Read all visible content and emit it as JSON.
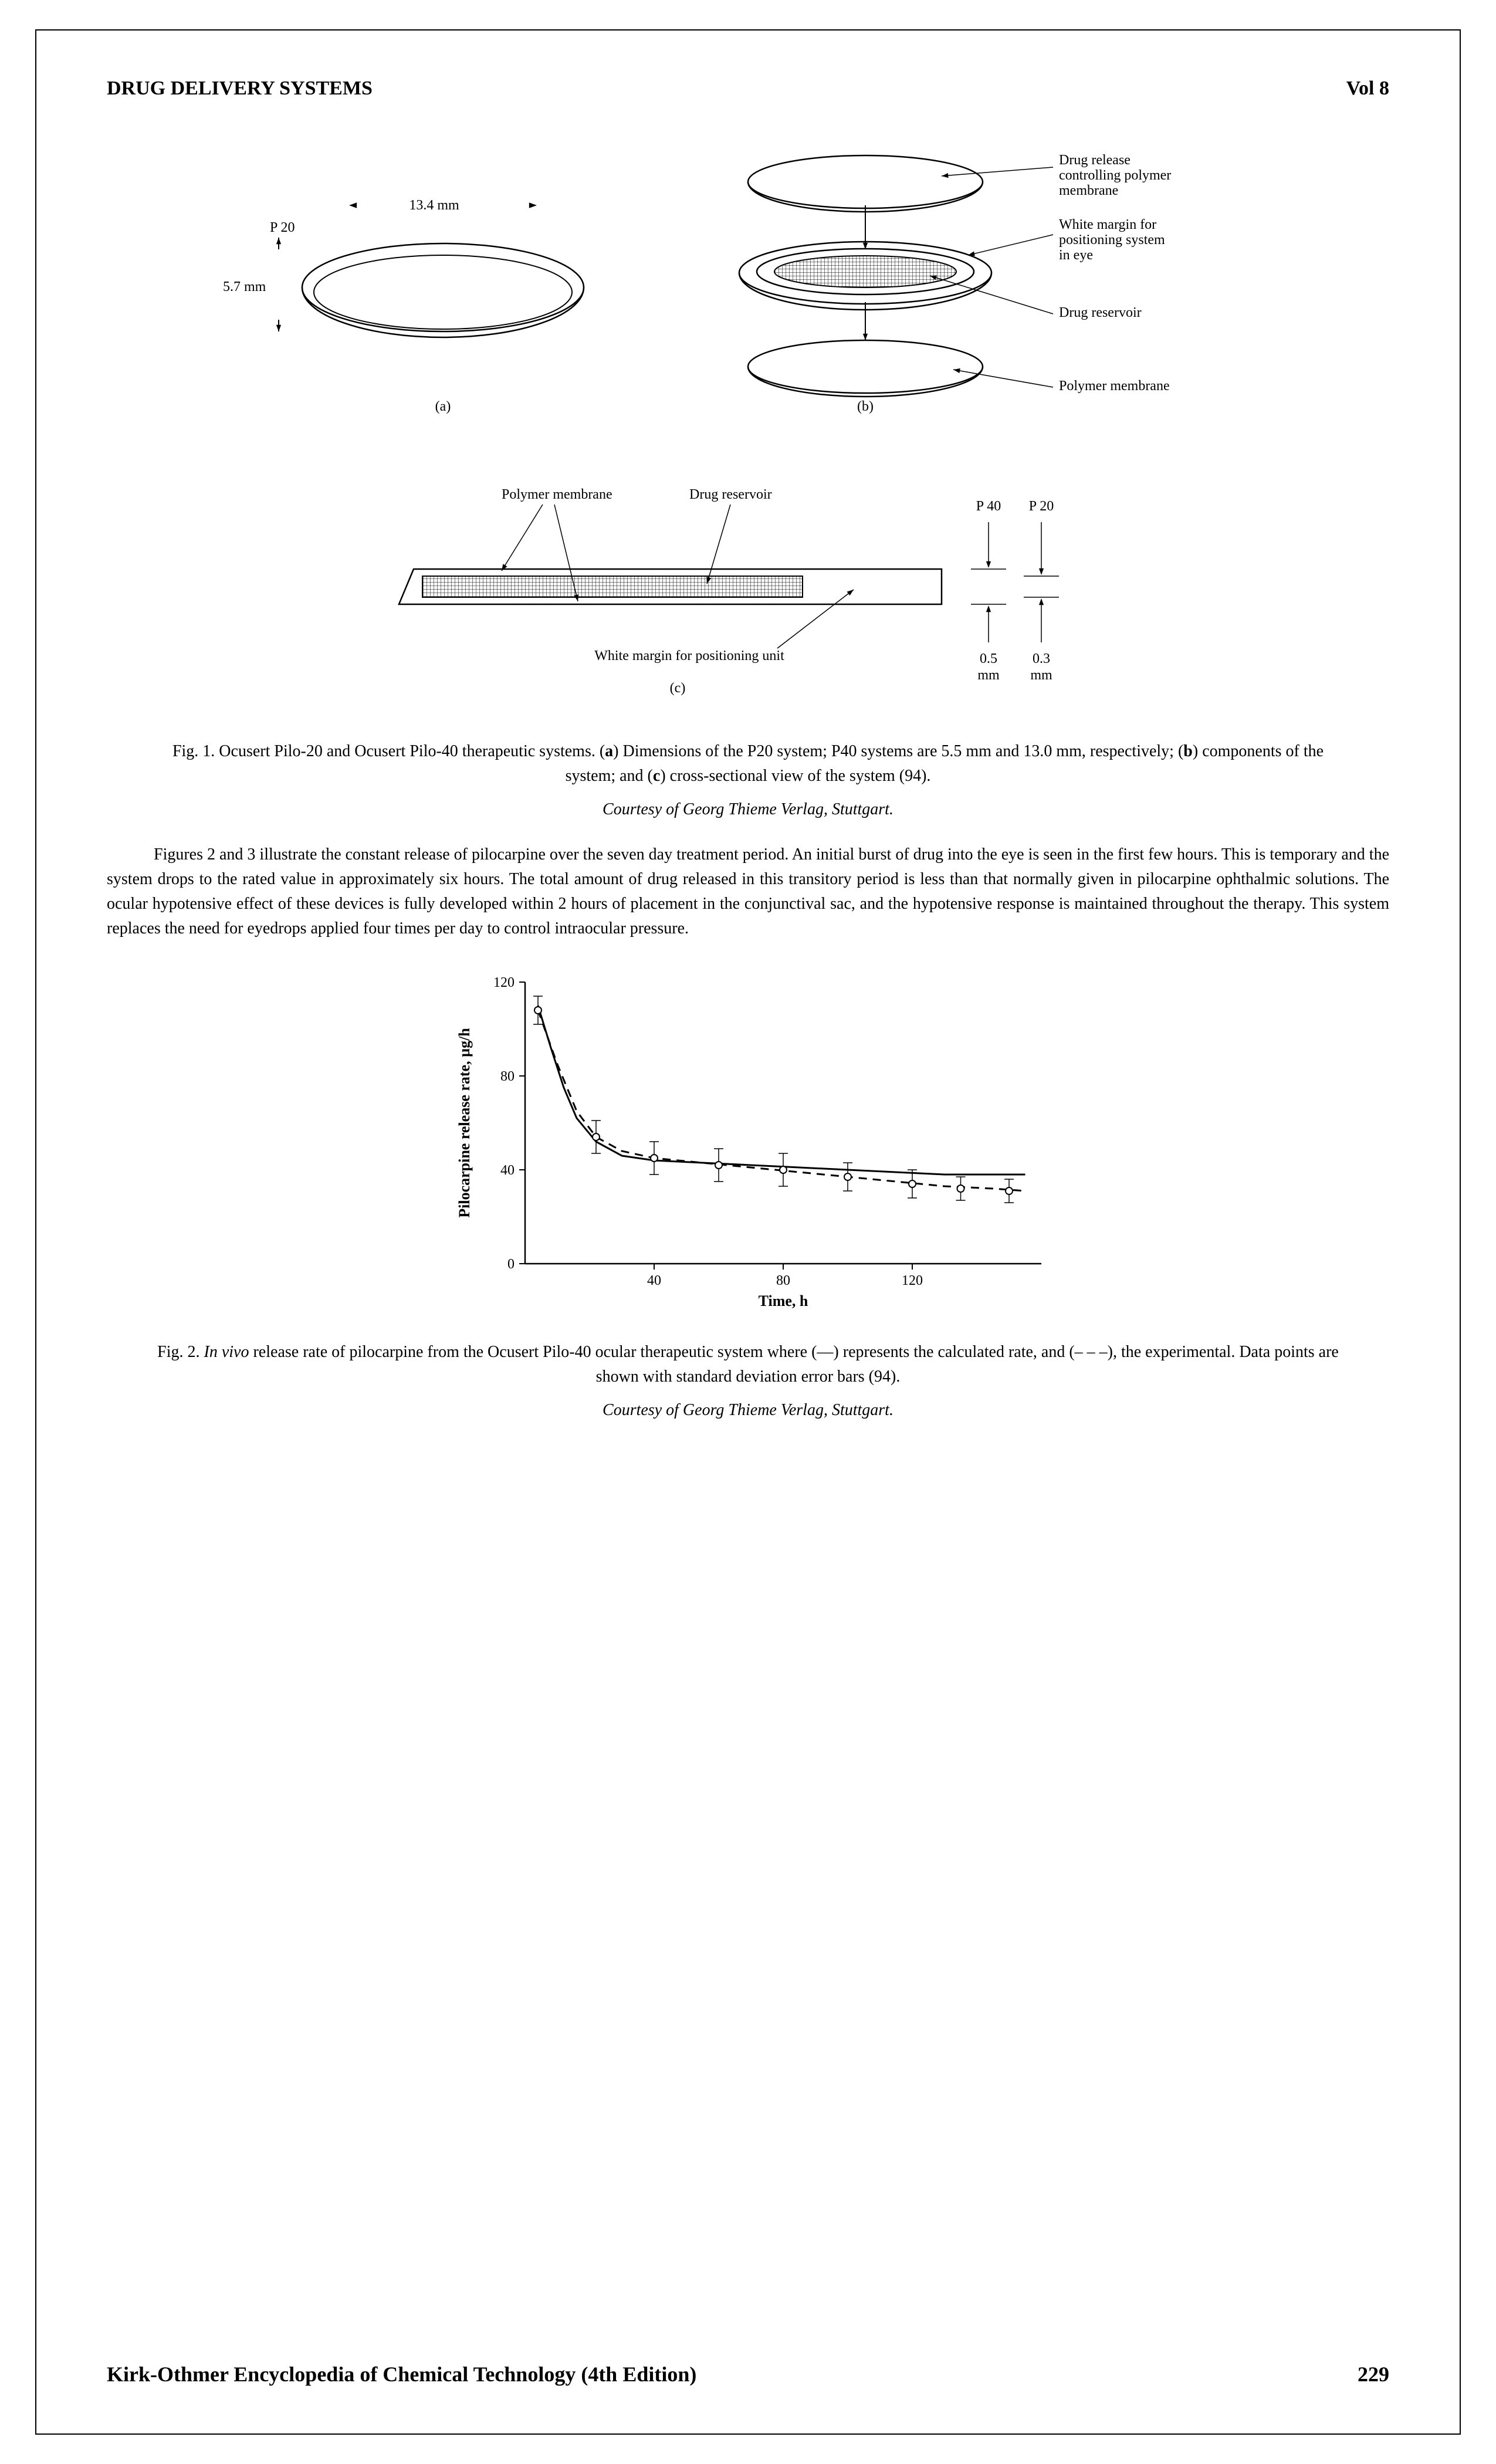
{
  "header": {
    "title": "DRUG DELIVERY SYSTEMS",
    "volume": "Vol 8"
  },
  "figure1": {
    "type": "diagram",
    "width_label": "13.4 mm",
    "height_label": "5.7 mm",
    "p20_label": "P 20",
    "panel_a_label": "(a)",
    "panel_b_label": "(b)",
    "panel_c_label": "(c)",
    "callouts": {
      "drug_release_membrane": "Drug release controlling polymer membrane",
      "white_margin_eye": "White margin for positioning system in eye",
      "drug_reservoir": "Drug reservoir",
      "polymer_membrane": "Polymer membrane",
      "polymer_membrane_c": "Polymer membrane",
      "drug_reservoir_c": "Drug reservoir",
      "white_margin_unit": "White margin for positioning unit",
      "p40": "P 40",
      "p20_c": "P 20",
      "dim_05": "0.5 mm",
      "dim_03": "0.3 mm"
    },
    "caption_prefix": "Fig. 1. Ocusert Pilo-20 and Ocusert Pilo-40 therapeutic systems. (",
    "caption_a": "a",
    "caption_mid1": ") Dimensions of the P20 system; P40 systems are 5.5 mm and 13.0 mm, respectively; (",
    "caption_b": "b",
    "caption_mid2": ") components of the system; and (",
    "caption_c": "c",
    "caption_end": ") cross-sectional view of the system (94).",
    "courtesy": "Courtesy of Georg Thieme Verlag, Stuttgart.",
    "stroke_color": "#000000",
    "fill_white": "#ffffff",
    "hatch_spacing": 6,
    "label_fontsize": 24
  },
  "body_paragraph": "Figures 2 and 3 illustrate the constant release of pilocarpine over the seven day treatment period. An initial burst of drug into the eye is seen in the first few hours. This is temporary and the system drops to the rated value in approximately six hours. The total amount of drug released in this transitory period is less than that normally given in pilocarpine ophthalmic solutions. The ocular hypotensive effect of these devices is fully developed within 2 hours of placement in the conjunctival sac, and the hypotensive response is maintained throughout the therapy. This system replaces the need for eyedrops applied four times per day to control intraocular pressure.",
  "figure2": {
    "type": "line",
    "xlabel": "Time, h",
    "ylabel": "Pilocarpine release rate, µg/h",
    "label_fontsize": 24,
    "xlim": [
      0,
      160
    ],
    "ylim": [
      0,
      120
    ],
    "xticks": [
      40,
      80,
      120
    ],
    "yticks": [
      0,
      40,
      80,
      120
    ],
    "axis_color": "#000000",
    "line_width_solid": 3,
    "line_width_dashed": 3,
    "marker_radius": 6,
    "solid_curve": [
      [
        4,
        110
      ],
      [
        8,
        92
      ],
      [
        12,
        75
      ],
      [
        16,
        62
      ],
      [
        22,
        52
      ],
      [
        30,
        46
      ],
      [
        40,
        44
      ],
      [
        55,
        43
      ],
      [
        70,
        42
      ],
      [
        85,
        41
      ],
      [
        100,
        40
      ],
      [
        115,
        39
      ],
      [
        130,
        38
      ],
      [
        145,
        38
      ],
      [
        155,
        38
      ]
    ],
    "dashed_curve": [
      [
        4,
        108
      ],
      [
        10,
        85
      ],
      [
        16,
        65
      ],
      [
        22,
        54
      ],
      [
        30,
        48
      ],
      [
        40,
        45
      ],
      [
        55,
        43
      ],
      [
        70,
        41
      ],
      [
        85,
        39
      ],
      [
        100,
        37
      ],
      [
        115,
        35
      ],
      [
        130,
        33
      ],
      [
        145,
        32
      ],
      [
        155,
        31
      ]
    ],
    "data_points": [
      {
        "x": 4,
        "y": 108,
        "err": 6
      },
      {
        "x": 22,
        "y": 54,
        "err": 7
      },
      {
        "x": 40,
        "y": 45,
        "err": 7
      },
      {
        "x": 60,
        "y": 42,
        "err": 7
      },
      {
        "x": 80,
        "y": 40,
        "err": 7
      },
      {
        "x": 100,
        "y": 37,
        "err": 6
      },
      {
        "x": 120,
        "y": 34,
        "err": 6
      },
      {
        "x": 135,
        "y": 32,
        "err": 5
      },
      {
        "x": 150,
        "y": 31,
        "err": 5
      }
    ],
    "caption_prefix": "Fig. 2. ",
    "caption_italic": "In vivo",
    "caption_rest": " release rate of pilocarpine from the Ocusert Pilo-40 ocular therapeutic system where (—) represents the calculated rate, and (– – –), the experimental. Data points are shown with standard deviation error bars (94).",
    "courtesy": "Courtesy of Georg Thieme Verlag, Stuttgart."
  },
  "footer": {
    "book_title": "Kirk-Othmer Encyclopedia of Chemical Technology (4th Edition)",
    "page_number": "229"
  }
}
